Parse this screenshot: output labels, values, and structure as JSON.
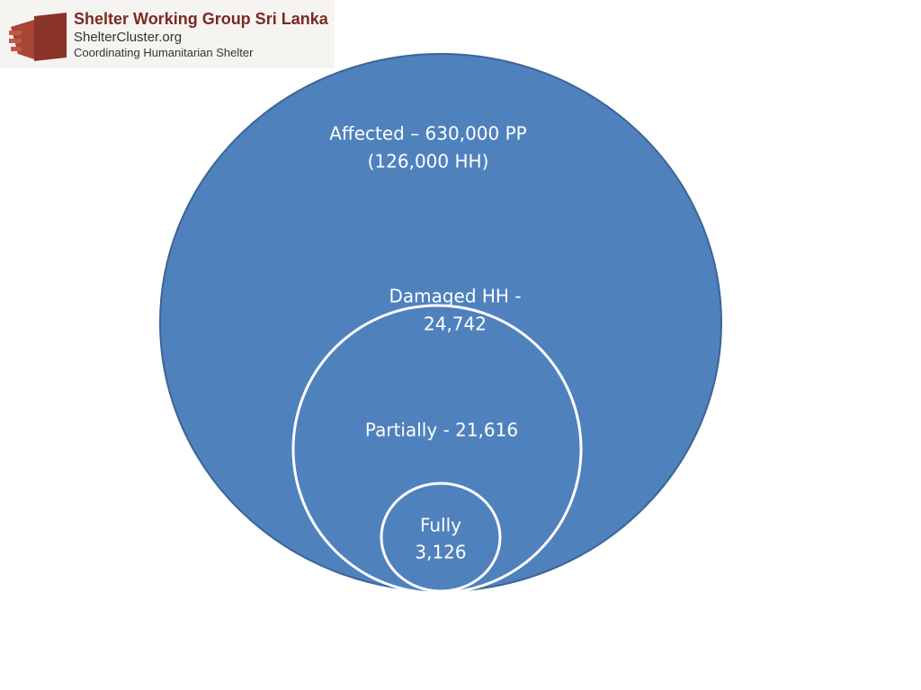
{
  "header": {
    "title": "Shelter Working Group Sri Lanka",
    "site": "ShelterCluster.org",
    "tagline": "Coordinating Humanitarian Shelter"
  },
  "nodes": [
    {
      "lines": [
        "Affected – 630,000 PP",
        "(126,000 HH)"
      ]
    },
    {
      "lines": [
        "Damaged HH -",
        "24,742"
      ]
    },
    {
      "lines": [
        "Partially - 21,616"
      ]
    },
    {
      "lines": [
        "Fully",
        "3,126"
      ]
    }
  ]
}
